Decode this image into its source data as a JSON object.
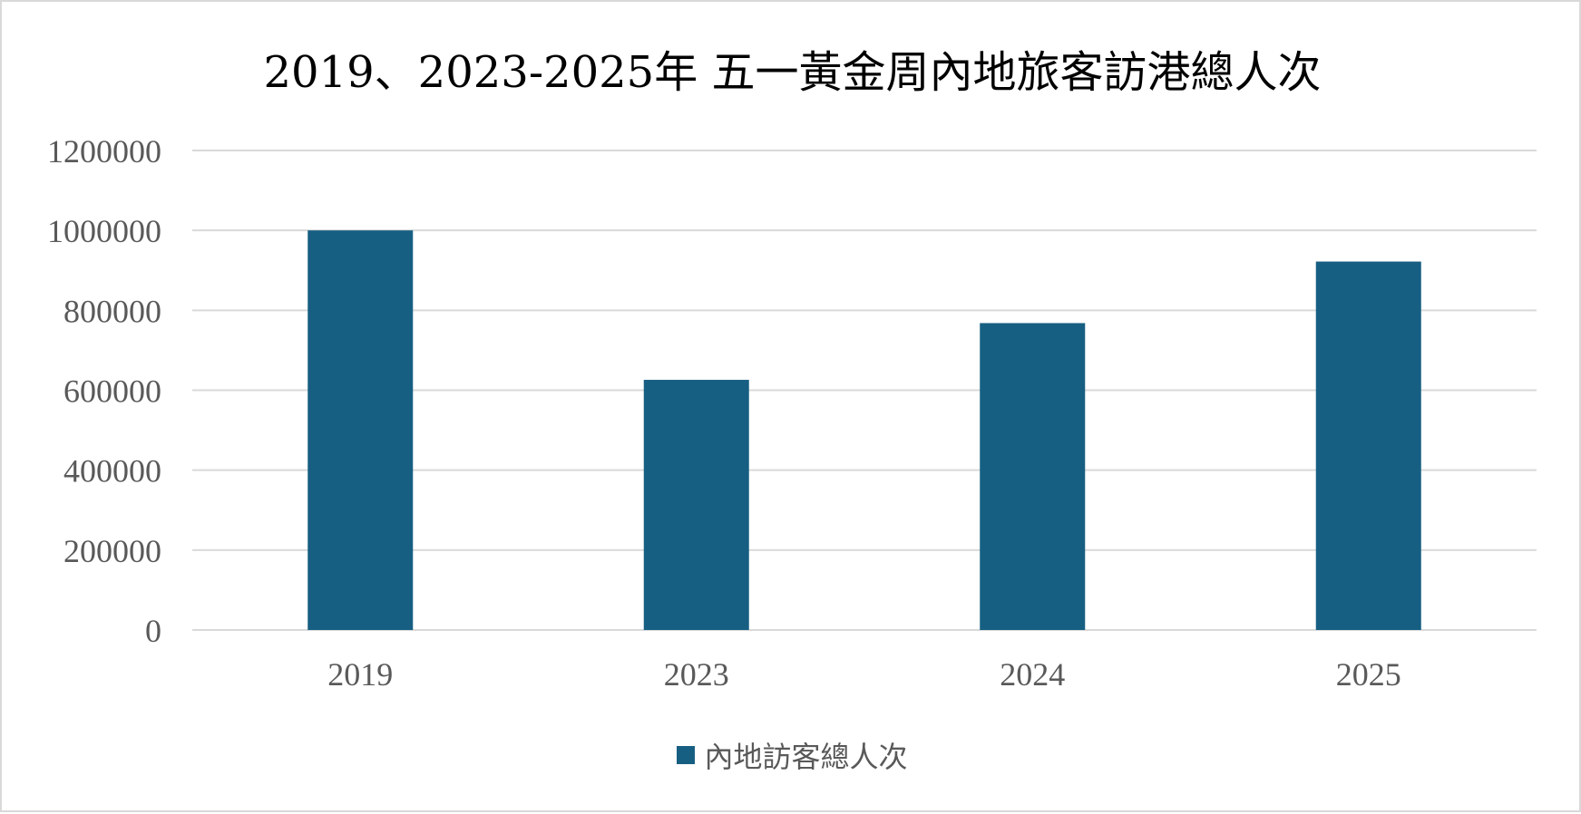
{
  "chart_data": {
    "type": "bar",
    "title": "2019、2023-2025年 五一黃金周內地旅客訪港總人次",
    "categories": [
      "2019",
      "2023",
      "2024",
      "2025"
    ],
    "series": [
      {
        "name": "內地訪客總人次",
        "values": [
          1000000,
          626000,
          768000,
          922000
        ],
        "color": "#175F82"
      }
    ],
    "ylim": [
      0,
      1200000
    ],
    "yticks": [
      "0",
      "200000",
      "400000",
      "600000",
      "800000",
      "1000000",
      "1200000"
    ],
    "grid": true,
    "gridColor": "#d9d9d9",
    "legend": "bottom",
    "xlabel": "",
    "ylabel": ""
  }
}
